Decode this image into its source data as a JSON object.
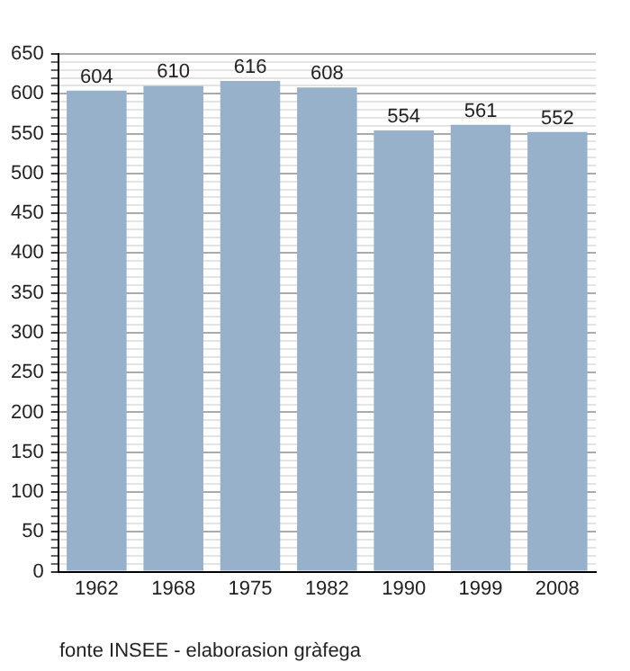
{
  "chart_data": {
    "type": "bar",
    "categories": [
      "1962",
      "1968",
      "1975",
      "1982",
      "1990",
      "1999",
      "2008"
    ],
    "values": [
      604,
      610,
      616,
      608,
      554,
      561,
      552
    ],
    "color": "#98b1cb",
    "ylim": [
      0,
      650
    ],
    "yticks": [
      0,
      {
        "value": 10,
        "label": null
      },
      {
        "value": 20,
        "label": null
      },
      {
        "value": 30,
        "label": null
      },
      {
        "value": 40,
        "label": null
      },
      50,
      {
        "value": 60,
        "label": null
      },
      {
        "value": 70,
        "label": null
      },
      {
        "value": 80,
        "label": null
      },
      {
        "value": 90,
        "label": null
      },
      100,
      {
        "value": 110,
        "label": null
      },
      {
        "value": 120,
        "label": null
      },
      {
        "value": 130,
        "label": null
      },
      {
        "value": 140,
        "label": null
      },
      150,
      {
        "value": 160,
        "label": null
      },
      {
        "value": 170,
        "label": null
      },
      {
        "value": 180,
        "label": null
      },
      {
        "value": 190,
        "label": null
      },
      200,
      {
        "value": 210,
        "label": null
      },
      {
        "value": 220,
        "label": null
      },
      {
        "value": 230,
        "label": null
      },
      {
        "value": 240,
        "label": null
      },
      250,
      {
        "value": 260,
        "label": null
      },
      {
        "value": 270,
        "label": null
      },
      {
        "value": 280,
        "label": null
      },
      {
        "value": 290,
        "label": null
      },
      300,
      {
        "value": 310,
        "label": null
      },
      {
        "value": 320,
        "label": null
      },
      {
        "value": 330,
        "label": null
      },
      {
        "value": 340,
        "label": null
      },
      350,
      {
        "value": 360,
        "label": null
      },
      {
        "value": 370,
        "label": null
      },
      {
        "value": 380,
        "label": null
      },
      {
        "value": 390,
        "label": null
      },
      400,
      {
        "value": 410,
        "label": null
      },
      {
        "value": 420,
        "label": null
      },
      {
        "value": 430,
        "label": null
      },
      {
        "value": 440,
        "label": null
      },
      450,
      {
        "value": 460,
        "label": null
      },
      {
        "value": 470,
        "label": null
      },
      {
        "value": 480,
        "label": null
      },
      {
        "value": 490,
        "label": null
      },
      500,
      {
        "value": 510,
        "label": null
      },
      {
        "value": 520,
        "label": null
      },
      {
        "value": 530,
        "label": null
      },
      {
        "value": 540,
        "label": null
      },
      550,
      {
        "value": 560,
        "label": null
      },
      {
        "value": 570,
        "label": null
      },
      {
        "value": 580,
        "label": null
      },
      {
        "value": 590,
        "label": null
      },
      600,
      {
        "value": 610,
        "label": null
      },
      {
        "value": 620,
        "label": null
      },
      {
        "value": 630,
        "label": null
      },
      {
        "value": 640,
        "label": null
      },
      650
    ],
    "grid": "y",
    "data_labels": true,
    "annotations": [
      "fonte INSEE - elaborasion gràfega"
    ]
  }
}
